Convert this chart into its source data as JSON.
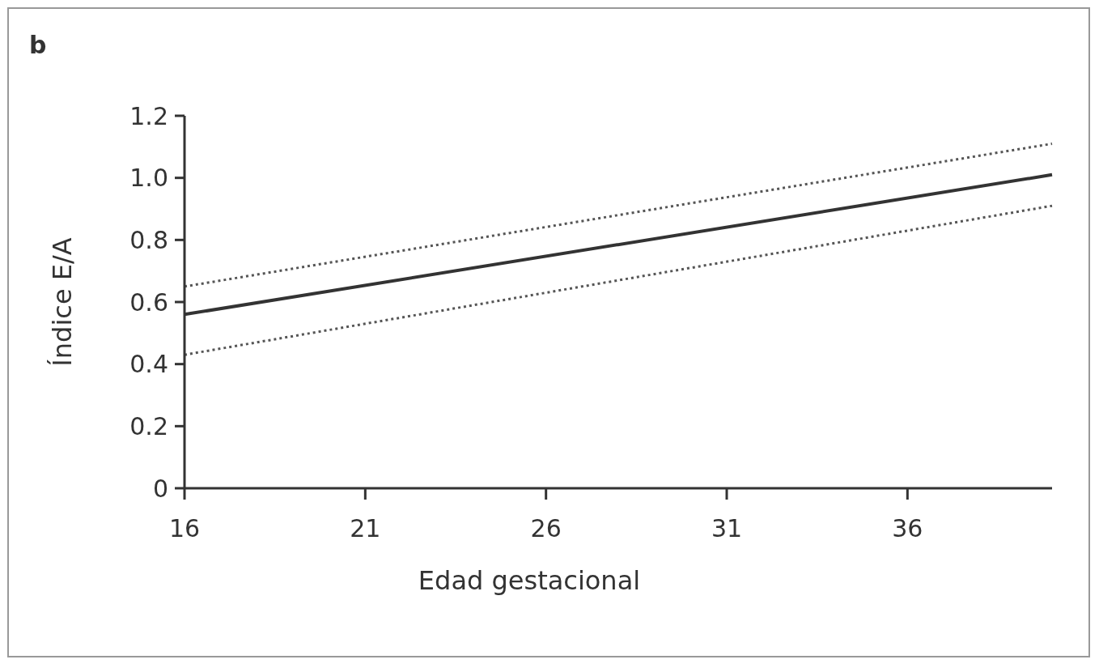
{
  "chart_data": {
    "type": "line",
    "title": "b",
    "xlabel": "Edad gestacional",
    "ylabel": "Índice E/A",
    "xlim": [
      16,
      40
    ],
    "xticks": [
      16,
      21,
      26,
      31,
      36
    ],
    "ylim": [
      0,
      1.2
    ],
    "yticks": [
      0,
      0.2,
      0.4,
      0.6,
      0.8,
      {
        "value": 1.0,
        "label": "1.0"
      },
      1.2
    ],
    "grid": false,
    "marker": "none",
    "x": [
      16,
      40
    ],
    "series": [
      {
        "color": "#333333",
        "values": [
          0.56,
          1.01
        ],
        "line_style": "solid"
      },
      {
        "color": "#555555",
        "values": [
          0.65,
          1.11
        ],
        "line_style": "dotted"
      },
      {
        "color": "#555555",
        "values": [
          0.43,
          0.91
        ],
        "line_style": "dotted"
      }
    ]
  }
}
